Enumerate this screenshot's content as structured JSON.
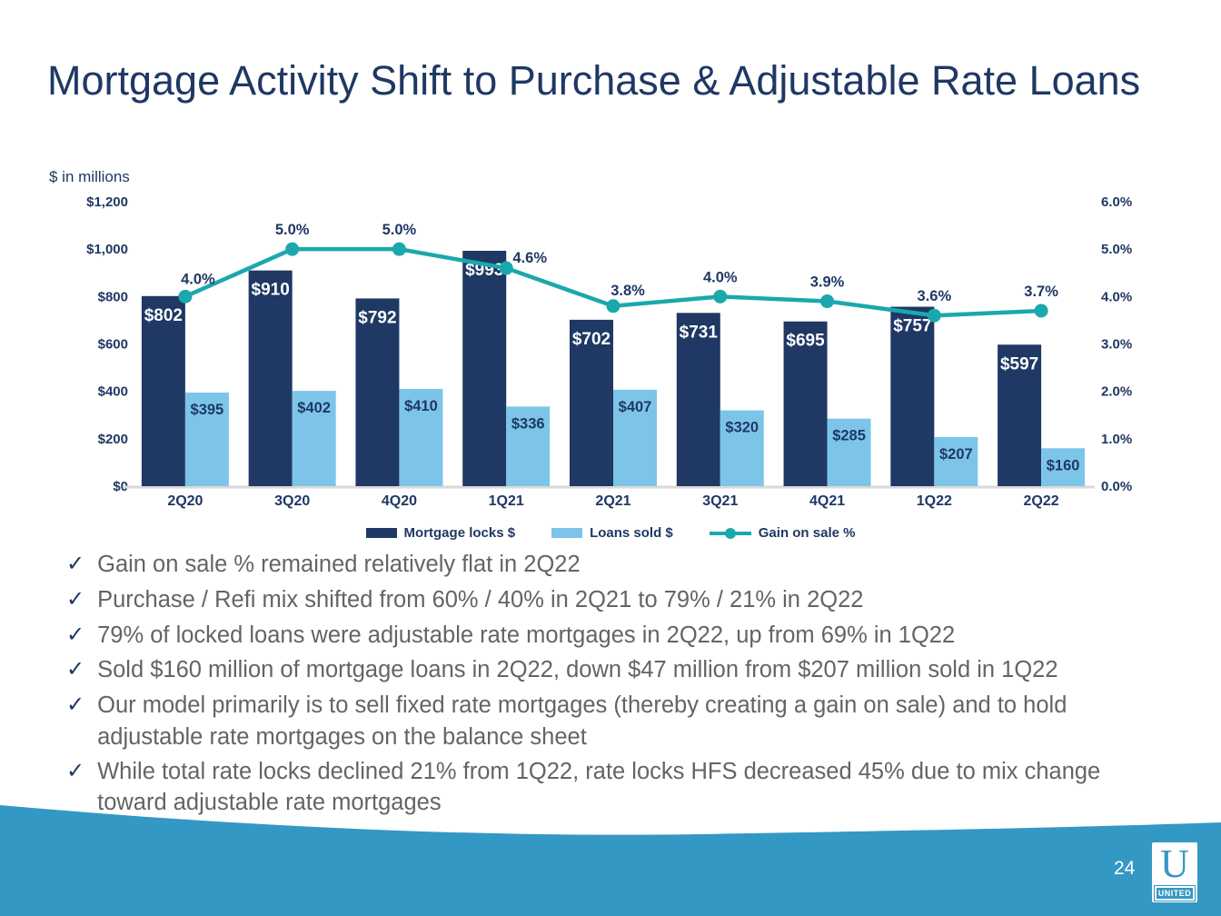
{
  "slide": {
    "title": "Mortgage Activity Shift to Purchase & Adjustable Rate Loans",
    "units_note": "$ in millions",
    "page_number": "24",
    "logo": {
      "letter": "U",
      "word": "UNITED"
    }
  },
  "icons": {
    "check": "✓"
  },
  "colors": {
    "navy": "#1F3864",
    "light_blue": "#7DC5E8",
    "teal": "#1BA8AC",
    "wave_blue": "#3498C4",
    "text_gray": "#646464"
  },
  "chart_data": {
    "type": "bar+line combo",
    "categories": [
      "2Q20",
      "3Q20",
      "4Q20",
      "1Q21",
      "2Q21",
      "3Q21",
      "4Q21",
      "1Q22",
      "2Q22"
    ],
    "series": [
      {
        "name": "Mortgage locks $",
        "type": "bar",
        "axis": "left",
        "color": "#1F3864",
        "label_color": "#FFFFFF",
        "values": [
          802,
          910,
          792,
          993,
          702,
          731,
          695,
          757,
          597
        ],
        "labels": [
          "$802",
          "$910",
          "$792",
          "$993",
          "$702",
          "$731",
          "$695",
          "$757",
          "$597"
        ]
      },
      {
        "name": "Loans sold $",
        "type": "bar",
        "axis": "left",
        "color": "#7DC5E8",
        "label_color": "#1F3864",
        "values": [
          395,
          402,
          410,
          336,
          407,
          320,
          285,
          207,
          160
        ],
        "labels": [
          "$395",
          "$402",
          "$410",
          "$336",
          "$407",
          "$320",
          "$285",
          "$207",
          "$160"
        ]
      },
      {
        "name": "Gain on sale %",
        "type": "line",
        "axis": "right",
        "color": "#1BA8AC",
        "label_color": "#1F3864",
        "values": [
          4.0,
          5.0,
          5.0,
          4.6,
          3.8,
          4.0,
          3.9,
          3.6,
          3.7
        ],
        "labels": [
          "4.0%",
          "5.0%",
          "5.0%",
          "4.6%",
          "3.8%",
          "4.0%",
          "3.9%",
          "3.6%",
          "3.7%"
        ]
      }
    ],
    "left_axis": {
      "min": 0,
      "max": 1200,
      "ticks": [
        "$0",
        "$200",
        "$400",
        "$600",
        "$800",
        "$1,000",
        "$1,200"
      ]
    },
    "right_axis": {
      "min": 0,
      "max": 6,
      "ticks": [
        "0.0%",
        "1.0%",
        "2.0%",
        "3.0%",
        "4.0%",
        "5.0%",
        "6.0%"
      ]
    },
    "grid": false,
    "legend_position": "bottom",
    "label_offsets": {
      "pct_dx": [
        14,
        0,
        0,
        26,
        16,
        0,
        0,
        0,
        0
      ],
      "pct_dy": [
        -14,
        -16,
        -16,
        -6,
        -12,
        -16,
        -16,
        -16,
        -16
      ]
    }
  },
  "bullets": [
    "Gain on sale % remained relatively flat in 2Q22",
    "Purchase / Refi mix shifted from 60% / 40% in 2Q21 to 79% / 21% in 2Q22",
    "79% of locked loans were adjustable rate mortgages in 2Q22, up from 69% in 1Q22",
    "Sold $160 million of mortgage loans in 2Q22, down $47 million from $207 million sold in 1Q22",
    "Our model primarily is to sell fixed rate mortgages (thereby creating a gain on sale) and to hold adjustable rate mortgages on the balance sheet",
    "While total rate locks declined 21% from 1Q22, rate locks HFS decreased 45% due to mix change toward adjustable rate mortgages"
  ]
}
